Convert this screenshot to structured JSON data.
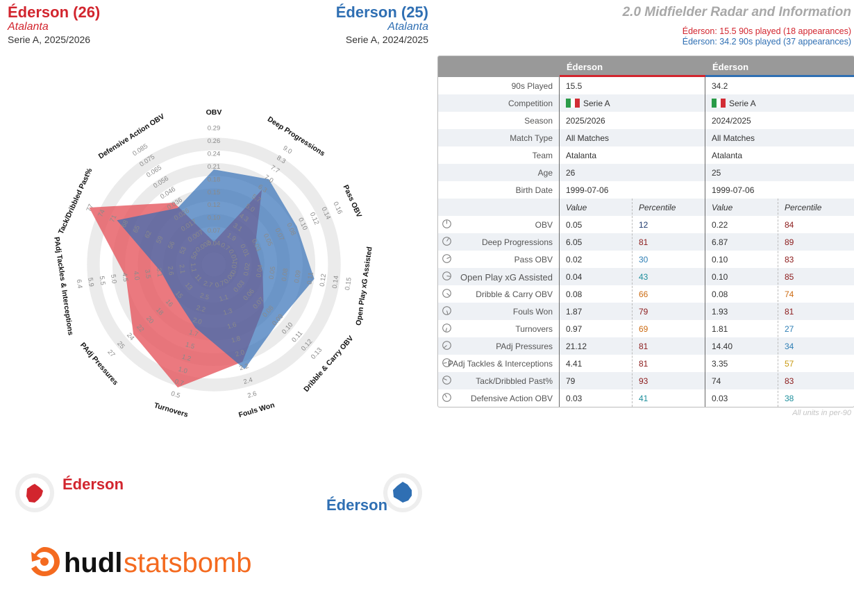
{
  "header": {
    "left": {
      "name": "Éderson (26)",
      "team": "Atalanta",
      "season": "Serie A, 2025/2026"
    },
    "right": {
      "name": "Éderson (25)",
      "team": "Atalanta",
      "season": "Serie A, 2024/2025"
    },
    "title": "2.0 Midfielder Radar and Information",
    "minutes_red": "Éderson: 15.5 90s played (18 appearances)",
    "minutes_blue": "Éderson: 34.2 90s played (37 appearances)"
  },
  "colors": {
    "red": "#d2252e",
    "blue": "#2f6fb3",
    "red_fill": "#e5535b",
    "blue_fill": "#2e6bb5",
    "ring": "#ebebeb"
  },
  "chart_data": {
    "type": "radar",
    "axes": [
      {
        "label": "OBV",
        "ticks": [
          "0.04",
          "0.07",
          "0.10",
          "0.12",
          "0.15",
          "0.18",
          "0.21",
          "0.24",
          "0.26",
          "0.29"
        ]
      },
      {
        "label": "Deep Progressions",
        "ticks": [
          "0.7",
          "1.9",
          "3.1",
          "4.3",
          "5.0",
          "5.7",
          "6.3",
          "7.0",
          "7.7",
          "8.3",
          "9.0"
        ]
      },
      {
        "label": "Pass OBV",
        "ticks": [
          "0.01",
          "0.01",
          "0.03",
          "0.05",
          "0.07",
          "0.08",
          "0.10",
          "0.12",
          "0.14",
          "0.16"
        ]
      },
      {
        "label": "Open Play xG Assisted",
        "ticks": [
          "0.01",
          "0.02",
          "0.04",
          "0.05",
          "0.08",
          "0.09",
          "0.11",
          "0.12",
          "0.14",
          "0.15"
        ]
      },
      {
        "label": "Dribble & Carry OBV",
        "ticks": [
          "0.00",
          "0.03",
          "0.06",
          "0.07",
          "0.08",
          "0.09",
          "0.10",
          "0.11",
          "0.12",
          "0.13"
        ]
      },
      {
        "label": "Fouls Won",
        "ticks": [
          "0.7",
          "1.1",
          "1.3",
          "1.6",
          "1.8",
          "2.0",
          "2.2",
          "2.4",
          "2.6"
        ]
      },
      {
        "label": "Turnovers",
        "ticks": [
          "2.7",
          "2.5",
          "2.2",
          "2.0",
          "1.7",
          "1.5",
          "1.2",
          "1.0",
          "0.7",
          "0.5"
        ]
      },
      {
        "label": "PAdj Pressures",
        "ticks": [
          "11",
          "13",
          "15",
          "16",
          "18",
          "20",
          "22",
          "24",
          "25",
          "27"
        ]
      },
      {
        "label": "PAdj Tackles & Interceptions",
        "ticks": [
          "1.1",
          "2.1",
          "2.6",
          "3.1",
          "3.5",
          "4.0",
          "4.5",
          "5.0",
          "5.5",
          "5.9",
          "6.4"
        ]
      },
      {
        "label": "Tack/Dribbled Past%",
        "ticks": [
          "50",
          "53",
          "56",
          "59",
          "62",
          "65",
          "68",
          "71",
          "74",
          "77"
        ]
      },
      {
        "label": "Defensive Action OBV",
        "ticks": [
          "-0.003",
          "0.007",
          "0.017",
          "0.026",
          "0.036",
          "0.046",
          "0.056",
          "0.065",
          "0.075",
          "0.085"
        ]
      }
    ],
    "series": [
      {
        "name": "Éderson",
        "season": "2025/2026",
        "color": "#d2252e",
        "values": [
          0.05,
          6.05,
          0.02,
          0.04,
          0.08,
          1.87,
          0.97,
          21.12,
          4.41,
          79,
          0.03
        ],
        "scale": [
          0.08,
          0.6,
          0.26,
          0.29,
          0.42,
          0.7,
          0.91,
          0.74,
          0.6,
          0.98,
          0.48
        ]
      },
      {
        "name": "Éderson",
        "season": "2024/2025",
        "color": "#2f6fb3",
        "values": [
          0.22,
          6.87,
          0.1,
          0.1,
          0.08,
          1.93,
          1.81,
          14.4,
          3.35,
          74,
          0.03
        ],
        "scale": [
          0.65,
          0.7,
          0.62,
          0.7,
          0.58,
          0.76,
          0.42,
          0.3,
          0.32,
          0.74,
          0.43
        ]
      }
    ]
  },
  "table": {
    "headers": [
      "Éderson",
      "Éderson"
    ],
    "info_rows": [
      {
        "label": "90s Played",
        "left": "15.5",
        "right": "34.2"
      },
      {
        "label": "Competition",
        "left": "Serie A",
        "right": "Serie A"
      },
      {
        "label": "Season",
        "left": "2025/2026",
        "right": "2024/2025"
      },
      {
        "label": "Match Type",
        "left": "All Matches",
        "right": "All Matches"
      },
      {
        "label": "Team",
        "left": "Atalanta",
        "right": "Atalanta"
      },
      {
        "label": "Age",
        "left": "26",
        "right": "25"
      },
      {
        "label": "Birth Date",
        "left": "1999-07-06",
        "right": "1999-07-06"
      }
    ],
    "subheaders": {
      "value": "Value",
      "percentile": "Percentile"
    },
    "stat_rows": [
      {
        "label": "OBV",
        "lv": "0.05",
        "lp": "12",
        "lpc": "p-navy",
        "rv": "0.22",
        "rp": "84",
        "rpc": "p-dark"
      },
      {
        "label": "Deep Progressions",
        "lv": "6.05",
        "lp": "81",
        "lpc": "p-dark",
        "rv": "6.87",
        "rp": "89",
        "rpc": "p-dark"
      },
      {
        "label": "Pass OBV",
        "lv": "0.02",
        "lp": "30",
        "lpc": "p-blue",
        "rv": "0.10",
        "rp": "83",
        "rpc": "p-dark"
      },
      {
        "label": "Open Play xG Assisted",
        "lv": "0.04",
        "lp": "43",
        "lpc": "p-teal",
        "rv": "0.10",
        "rp": "85",
        "rpc": "p-dark",
        "big": true
      },
      {
        "label": "Dribble & Carry OBV",
        "lv": "0.08",
        "lp": "66",
        "lpc": "p-orange",
        "rv": "0.08",
        "rp": "74",
        "rpc": "p-orange"
      },
      {
        "label": "Fouls Won",
        "lv": "1.87",
        "lp": "79",
        "lpc": "p-dark",
        "rv": "1.93",
        "rp": "81",
        "rpc": "p-dark"
      },
      {
        "label": "Turnovers",
        "lv": "0.97",
        "lp": "69",
        "lpc": "p-orange",
        "rv": "1.81",
        "rp": "27",
        "rpc": "p-blue"
      },
      {
        "label": "PAdj Pressures",
        "lv": "21.12",
        "lp": "81",
        "lpc": "p-dark",
        "rv": "14.40",
        "rp": "34",
        "rpc": "p-blue"
      },
      {
        "label": "PAdj Tackles & Interceptions",
        "lv": "4.41",
        "lp": "81",
        "lpc": "p-dark",
        "rv": "3.35",
        "rp": "57",
        "rpc": "p-gold"
      },
      {
        "label": "Tack/Dribbled Past%",
        "lv": "79",
        "lp": "93",
        "lpc": "p-dark",
        "rv": "74",
        "rp": "83",
        "rpc": "p-dark"
      },
      {
        "label": "Defensive Action OBV",
        "lv": "0.03",
        "lp": "41",
        "lpc": "p-teal",
        "rv": "0.03",
        "rp": "38",
        "rpc": "p-teal"
      }
    ],
    "note": "All units in per-90"
  },
  "legend": {
    "red_name": "Éderson",
    "blue_name": "Éderson"
  },
  "logo": {
    "text_bold": "hudl",
    "text_light": "statsbomb",
    "icon": "statsbomb-logo-icon"
  }
}
